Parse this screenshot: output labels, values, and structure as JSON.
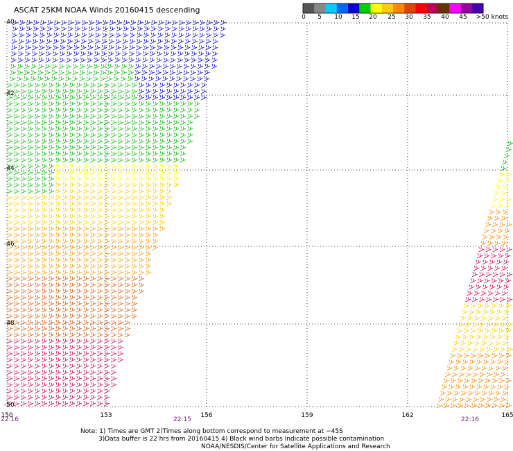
{
  "title": "ASCAT 25KM NOAA Winds 20160415 descending",
  "colorbar": {
    "labels": [
      "0",
      "5",
      "10",
      "15",
      "20",
      "25",
      "30",
      "35",
      "40",
      "45",
      ">50 knots"
    ],
    "colors": [
      "#555555",
      "#888888",
      "#00ccff",
      "#0066ff",
      "#0000cc",
      "#00cc00",
      "#ffff00",
      "#ffcc00",
      "#ff8800",
      "#dd4400",
      "#ff0000",
      "#bb0055",
      "#663300",
      "#ff00ff",
      "#990099",
      "#4400aa"
    ]
  },
  "map": {
    "lat_labels": [
      "-40",
      "-42",
      "-44",
      "-46",
      "-48",
      "-50"
    ],
    "lon_labels": [
      "150",
      "153",
      "156",
      "159",
      "162",
      "165"
    ],
    "time_labels": [
      "22:16",
      "22:15",
      "22:16"
    ],
    "lon_range": [
      150,
      165
    ],
    "lat_range": [
      -40,
      -50
    ]
  },
  "swaths": {
    "west_colors": [
      "#0000cc",
      "#00bb00",
      "#ffff00",
      "#ffcc00",
      "#ff9900",
      "#dd5500",
      "#cc0044"
    ],
    "east_colors": [
      "#00bb00",
      "#ffff00",
      "#ffcc00",
      "#ff8800",
      "#dd4400",
      "#cc0044"
    ]
  },
  "notes": {
    "line1": "Note: 1) Times are GMT 2)Times along bottom correspond to measurement at −45S",
    "line2": "3)Data buffer is 22 hrs from 20160415 4) Black wind barbs indicate possible contamination",
    "line3": "NOAA/NESDIS/Center for Satellite Applications and Research"
  }
}
